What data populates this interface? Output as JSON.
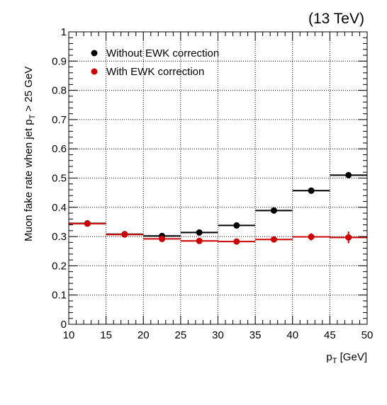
{
  "chart_data": {
    "type": "scatter",
    "annotation": "(13 TeV)",
    "xlabel": "p",
    "xlabel_sub": "T",
    "xlabel_suffix": " [GeV]",
    "ylabel_prefix": "Muon fake rate when jet p",
    "ylabel_sub": "T",
    "ylabel_suffix": " > 25 GeV",
    "xlim": [
      10,
      50
    ],
    "ylim": [
      0,
      1
    ],
    "xticks": [
      10,
      15,
      20,
      25,
      30,
      35,
      40,
      45,
      50
    ],
    "xtick_labels": [
      "10",
      "15",
      "20",
      "25",
      "30",
      "35",
      "40",
      "45",
      "50"
    ],
    "yticks": [
      0,
      0.1,
      0.2,
      0.3,
      0.4,
      0.5,
      0.6,
      0.7,
      0.8,
      0.9,
      1
    ],
    "ytick_labels": [
      "0",
      "0.1",
      "0.2",
      "0.3",
      "0.4",
      "0.5",
      "0.6",
      "0.7",
      "0.8",
      "0.9",
      "1"
    ],
    "grid": true,
    "legend_position": "top-left",
    "bins": [
      [
        10,
        15
      ],
      [
        15,
        20
      ],
      [
        20,
        25
      ],
      [
        25,
        30
      ],
      [
        30,
        35
      ],
      [
        35,
        40
      ],
      [
        40,
        45
      ],
      [
        45,
        50
      ]
    ],
    "series": [
      {
        "name": "Without EWK correction",
        "color": "#000000",
        "x": [
          12.5,
          17.5,
          22.5,
          27.5,
          32.5,
          37.5,
          42.5,
          47.5
        ],
        "values": [
          0.345,
          0.308,
          0.302,
          0.314,
          0.338,
          0.389,
          0.457,
          0.51
        ],
        "errors": [
          0.006,
          0.005,
          0.005,
          0.005,
          0.006,
          0.007,
          0.008,
          0.009
        ]
      },
      {
        "name": "With EWK correction",
        "color": "#cc0000",
        "x": [
          12.5,
          17.5,
          22.5,
          27.5,
          32.5,
          37.5,
          42.5,
          47.5
        ],
        "values": [
          0.344,
          0.307,
          0.292,
          0.285,
          0.283,
          0.29,
          0.299,
          0.297
        ],
        "errors": [
          0.006,
          0.005,
          0.007,
          0.006,
          0.007,
          0.008,
          0.012,
          0.02
        ]
      }
    ]
  }
}
